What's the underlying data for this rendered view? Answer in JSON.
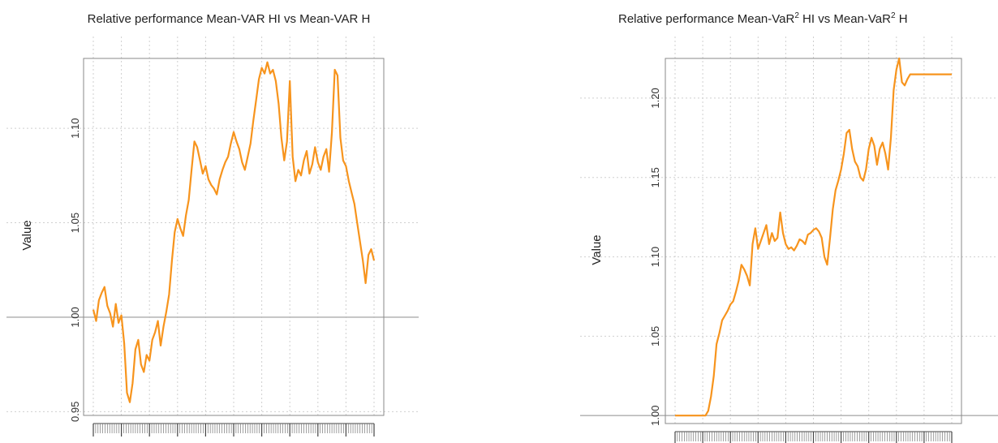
{
  "colors": {
    "series": "#F7941D",
    "reference": "#B9B9B9",
    "grid": "#CFCFCF"
  },
  "chart_data": [
    {
      "type": "line",
      "title": "Relative performance Mean-VAR HI vs Mean-VAR H",
      "ylabel": "Value",
      "xlabel": "",
      "ylim": [
        0.948,
        1.137
      ],
      "yticks": [
        {
          "value": 0.95,
          "label": "0.95"
        },
        {
          "value": 1.0,
          "label": "1.00"
        },
        {
          "value": 1.05,
          "label": "1.05"
        },
        {
          "value": 1.1,
          "label": "1.10"
        }
      ],
      "reference_line": 1.0,
      "grid": true,
      "x": [
        0,
        1,
        2,
        3,
        4,
        5,
        6,
        7,
        8,
        9,
        10,
        11,
        12,
        13,
        14,
        15,
        16,
        17,
        18,
        19,
        20,
        21,
        22,
        23,
        24,
        25,
        26,
        27,
        28,
        29,
        30,
        31,
        32,
        33,
        34,
        35,
        36,
        37,
        38,
        39,
        40,
        41,
        42,
        43,
        44,
        45,
        46,
        47,
        48,
        49,
        50,
        51,
        52,
        53,
        54,
        55,
        56,
        57,
        58,
        59,
        60,
        61,
        62,
        63,
        64,
        65,
        66,
        67,
        68,
        69,
        70,
        71,
        72,
        73,
        74,
        75,
        76,
        77,
        78,
        79,
        80,
        81,
        82,
        83,
        84,
        85,
        86,
        87,
        88,
        89,
        90,
        91,
        92,
        93,
        94,
        95,
        96,
        97,
        98,
        99,
        100
      ],
      "values": [
        1.004,
        0.998,
        1.009,
        1.013,
        1.016,
        1.006,
        1.002,
        0.995,
        1.007,
        0.997,
        1.001,
        0.986,
        0.96,
        0.955,
        0.965,
        0.983,
        0.988,
        0.975,
        0.971,
        0.98,
        0.977,
        0.988,
        0.992,
        0.998,
        0.985,
        0.995,
        1.003,
        1.012,
        1.03,
        1.045,
        1.052,
        1.047,
        1.043,
        1.054,
        1.062,
        1.078,
        1.093,
        1.09,
        1.083,
        1.076,
        1.08,
        1.073,
        1.07,
        1.068,
        1.065,
        1.073,
        1.078,
        1.082,
        1.085,
        1.092,
        1.098,
        1.093,
        1.089,
        1.082,
        1.078,
        1.085,
        1.092,
        1.104,
        1.115,
        1.126,
        1.132,
        1.129,
        1.135,
        1.129,
        1.131,
        1.125,
        1.113,
        1.095,
        1.083,
        1.093,
        1.125,
        1.085,
        1.072,
        1.078,
        1.075,
        1.083,
        1.088,
        1.076,
        1.081,
        1.09,
        1.082,
        1.078,
        1.085,
        1.089,
        1.077,
        1.098,
        1.131,
        1.128,
        1.095,
        1.083,
        1.08,
        1.072,
        1.066,
        1.06,
        1.05,
        1.04,
        1.03,
        1.018,
        1.033,
        1.036,
        1.03
      ]
    },
    {
      "type": "line",
      "title_parts": [
        "Relative performance Mean-VaR",
        "2",
        " HI vs Mean-VaR",
        "2",
        "  H"
      ],
      "ylabel": "Value",
      "xlabel": "",
      "ylim": [
        0.995,
        1.225
      ],
      "yticks": [
        {
          "value": 1.0,
          "label": "1.00"
        },
        {
          "value": 1.05,
          "label": "1.05"
        },
        {
          "value": 1.1,
          "label": "1.10"
        },
        {
          "value": 1.15,
          "label": "1.15"
        },
        {
          "value": 1.2,
          "label": "1.20"
        }
      ],
      "reference_line": 1.0,
      "grid": true,
      "x": [
        0,
        1,
        2,
        3,
        4,
        5,
        6,
        7,
        8,
        9,
        10,
        11,
        12,
        13,
        14,
        15,
        16,
        17,
        18,
        19,
        20,
        21,
        22,
        23,
        24,
        25,
        26,
        27,
        28,
        29,
        30,
        31,
        32,
        33,
        34,
        35,
        36,
        37,
        38,
        39,
        40,
        41,
        42,
        43,
        44,
        45,
        46,
        47,
        48,
        49,
        50,
        51,
        52,
        53,
        54,
        55,
        56,
        57,
        58,
        59,
        60,
        61,
        62,
        63,
        64,
        65,
        66,
        67,
        68,
        69,
        70,
        71,
        72,
        73,
        74,
        75,
        76,
        77,
        78,
        79,
        80,
        81,
        82,
        83,
        84,
        85,
        86,
        87,
        88,
        89,
        90,
        91,
        92,
        93,
        94,
        95,
        96,
        97,
        98,
        99,
        100
      ],
      "values": [
        1.0,
        1.0,
        1.0,
        1.0,
        1.0,
        1.0,
        1.0,
        1.0,
        1.0,
        1.0,
        1.0,
        1.0,
        1.003,
        1.012,
        1.025,
        1.045,
        1.052,
        1.06,
        1.063,
        1.066,
        1.07,
        1.072,
        1.078,
        1.085,
        1.095,
        1.092,
        1.088,
        1.082,
        1.108,
        1.118,
        1.105,
        1.11,
        1.115,
        1.12,
        1.108,
        1.115,
        1.11,
        1.112,
        1.128,
        1.115,
        1.108,
        1.105,
        1.106,
        1.104,
        1.107,
        1.111,
        1.11,
        1.108,
        1.114,
        1.115,
        1.117,
        1.118,
        1.116,
        1.112,
        1.1,
        1.095,
        1.112,
        1.13,
        1.142,
        1.148,
        1.155,
        1.165,
        1.178,
        1.18,
        1.168,
        1.16,
        1.157,
        1.15,
        1.148,
        1.155,
        1.168,
        1.175,
        1.17,
        1.158,
        1.168,
        1.172,
        1.165,
        1.155,
        1.175,
        1.205,
        1.218,
        1.225,
        1.21,
        1.208,
        1.212,
        1.215,
        1.215,
        1.215,
        1.215,
        1.215,
        1.215,
        1.215,
        1.215,
        1.215,
        1.215,
        1.215,
        1.215,
        1.215,
        1.215,
        1.215,
        1.215
      ]
    }
  ]
}
